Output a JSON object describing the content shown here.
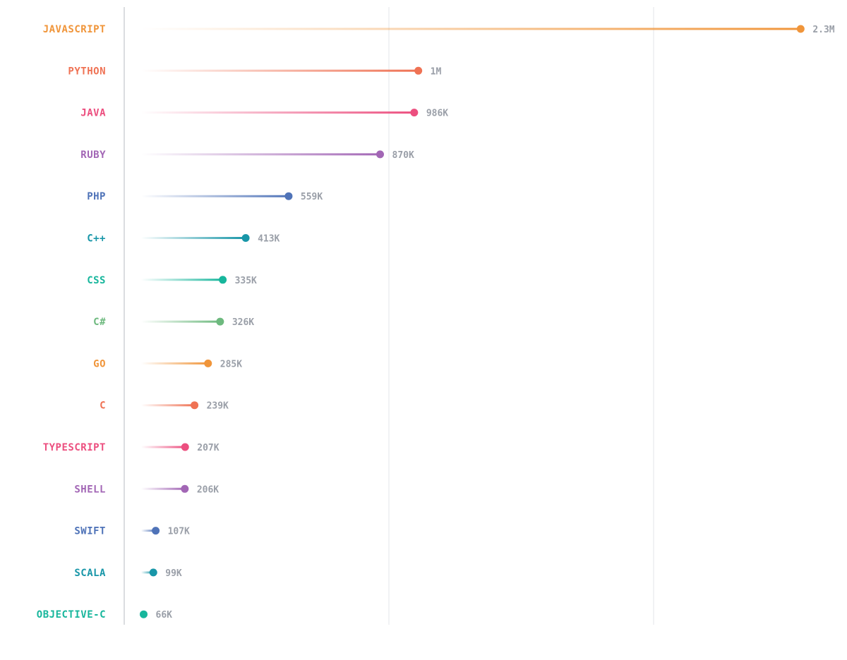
{
  "chart_data": {
    "type": "lollipop",
    "orientation": "horizontal",
    "categories": [
      "JAVASCRIPT",
      "PYTHON",
      "JAVA",
      "RUBY",
      "PHP",
      "C++",
      "CSS",
      "C#",
      "GO",
      "C",
      "TYPESCRIPT",
      "SHELL",
      "SWIFT",
      "SCALA",
      "OBJECTIVE-C"
    ],
    "values": [
      2300000,
      1000000,
      986000,
      870000,
      559000,
      413000,
      335000,
      326000,
      285000,
      239000,
      207000,
      206000,
      107000,
      99000,
      66000
    ],
    "value_labels": [
      "2.3M",
      "1M",
      "986K",
      "870K",
      "559K",
      "413K",
      "335K",
      "326K",
      "285K",
      "239K",
      "207K",
      "206K",
      "107K",
      "99K",
      "66K"
    ],
    "colors": [
      "#f0953a",
      "#ef7254",
      "#ec4f7f",
      "#a266b5",
      "#4f73b8",
      "#1896a8",
      "#17b69c",
      "#6db97e",
      "#f0953a",
      "#ef7254",
      "#ec4f7f",
      "#a266b5",
      "#4f73b8",
      "#1896a8",
      "#17b69c"
    ],
    "xlim": [
      0,
      2400000
    ],
    "gridlines": [
      0,
      900000,
      1800000
    ],
    "grid": true,
    "legend": "none",
    "title": "",
    "xlabel": "",
    "ylabel": ""
  }
}
